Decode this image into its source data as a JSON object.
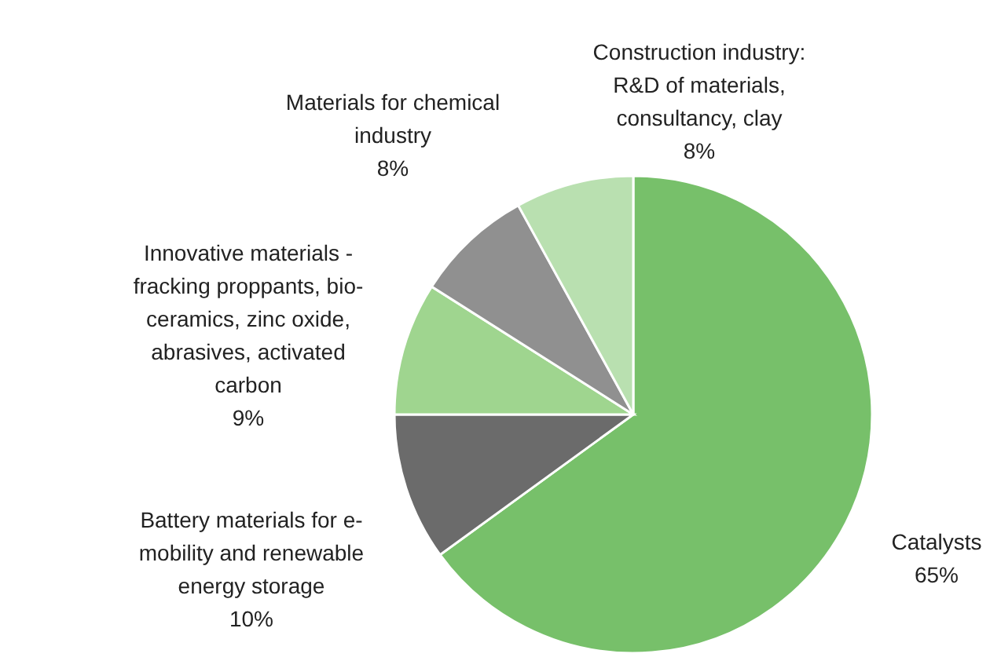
{
  "chart_data": {
    "type": "pie",
    "categories": [
      "Catalysts",
      "Battery materials for e-mobility and renewable energy storage",
      "Innovative materials - fracking proppants, bio-ceramics, zinc oxide, abrasives, activated carbon",
      "Materials for chemical industry",
      "Construction industry: R&D of materials, consultancy, clay"
    ],
    "values": [
      65,
      10,
      9,
      8,
      8
    ],
    "value_labels": [
      "65%",
      "10%",
      "9%",
      "8%",
      "8%"
    ],
    "colors": [
      "#77c06a",
      "#6b6b6b",
      "#9fd58f",
      "#909090",
      "#b9e0b0"
    ]
  }
}
